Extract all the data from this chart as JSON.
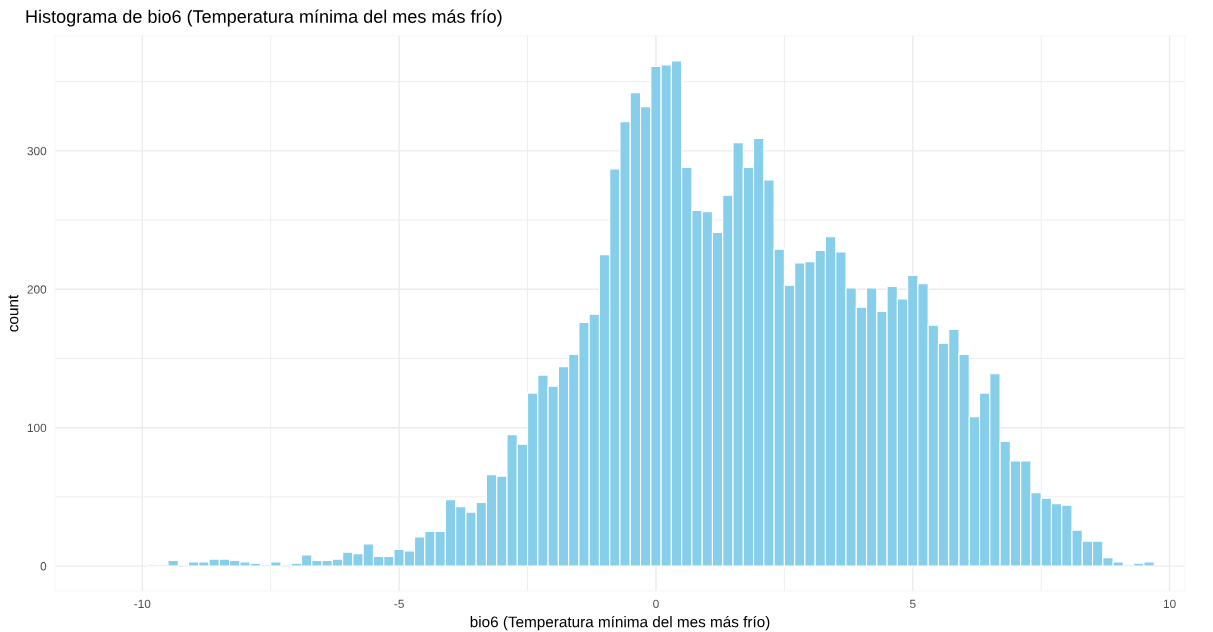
{
  "chart_data": {
    "type": "histogram",
    "title": "Histograma de bio6 (Temperatura mínima del mes más frío)",
    "xlabel": "bio6 (Temperatura mínima del mes más frío)",
    "ylabel": "count",
    "color": "#87ceeb",
    "bins": [
      -9.9,
      -9.7,
      -9.5,
      -9.3,
      -9.1,
      -8.9,
      -8.7,
      -8.5,
      -8.3,
      -8.1,
      -7.9,
      -7.7,
      -7.5,
      -7.3,
      -7.1,
      -6.9,
      -6.7,
      -6.5,
      -6.3,
      -6.1,
      -5.9,
      -5.7,
      -5.5,
      -5.3,
      -5.1,
      -4.9,
      -4.7,
      -4.5,
      -4.3,
      -4.1,
      -3.9,
      -3.7,
      -3.5,
      -3.3,
      -3.1,
      -2.9,
      -2.7,
      -2.5,
      -2.3,
      -2.1,
      -1.9,
      -1.7,
      -1.5,
      -1.3,
      -1.1,
      -0.9,
      -0.7,
      -0.5,
      -0.3,
      -0.1,
      0.1,
      0.3,
      0.5,
      0.7,
      0.9,
      1.1,
      1.3,
      1.5,
      1.7,
      1.9,
      2.1,
      2.3,
      2.5,
      2.7,
      2.9,
      3.1,
      3.3,
      3.5,
      3.7,
      3.9,
      4.1,
      4.3,
      4.5,
      4.7,
      4.9,
      5.1,
      5.3,
      5.5,
      5.7,
      5.9,
      6.1,
      6.3,
      6.5,
      6.7,
      6.9,
      7.1,
      7.3,
      7.5,
      7.7,
      7.9,
      8.1,
      8.3,
      8.5,
      8.7,
      8.9,
      9.1,
      9.3,
      9.5,
      9.7
    ],
    "values": [
      1,
      1,
      4,
      0,
      3,
      3,
      5,
      5,
      4,
      3,
      2,
      1,
      3,
      0,
      2,
      8,
      4,
      4,
      5,
      10,
      9,
      16,
      7,
      7,
      12,
      11,
      21,
      25,
      25,
      48,
      43,
      39,
      46,
      66,
      65,
      95,
      88,
      125,
      138,
      130,
      144,
      153,
      176,
      182,
      225,
      287,
      321,
      342,
      332,
      361,
      362,
      365,
      288,
      257,
      256,
      241,
      268,
      306,
      288,
      309,
      279,
      229,
      203,
      219,
      220,
      228,
      238,
      227,
      201,
      187,
      201,
      184,
      202,
      193,
      210,
      204,
      174,
      161,
      171,
      153,
      108,
      125,
      139,
      90,
      76,
      76,
      53,
      49,
      45,
      44,
      26,
      18,
      18,
      6,
      3,
      1,
      2,
      3
    ],
    "xlim": [
      -11.7,
      10.3
    ],
    "ylim": [
      -18,
      383
    ],
    "xticks": [
      -10,
      {
        "value": -7.5,
        "label": null
      },
      -5,
      {
        "value": -2.5,
        "label": null
      },
      0,
      {
        "value": 2.5,
        "label": null
      },
      5,
      {
        "value": 7.5,
        "label": null
      },
      10
    ],
    "yticks": [
      0,
      {
        "value": 50,
        "label": null
      },
      100,
      {
        "value": 150,
        "label": null
      },
      200,
      {
        "value": 250,
        "label": null
      },
      300,
      {
        "value": 350,
        "label": null
      }
    ],
    "grid": true
  }
}
